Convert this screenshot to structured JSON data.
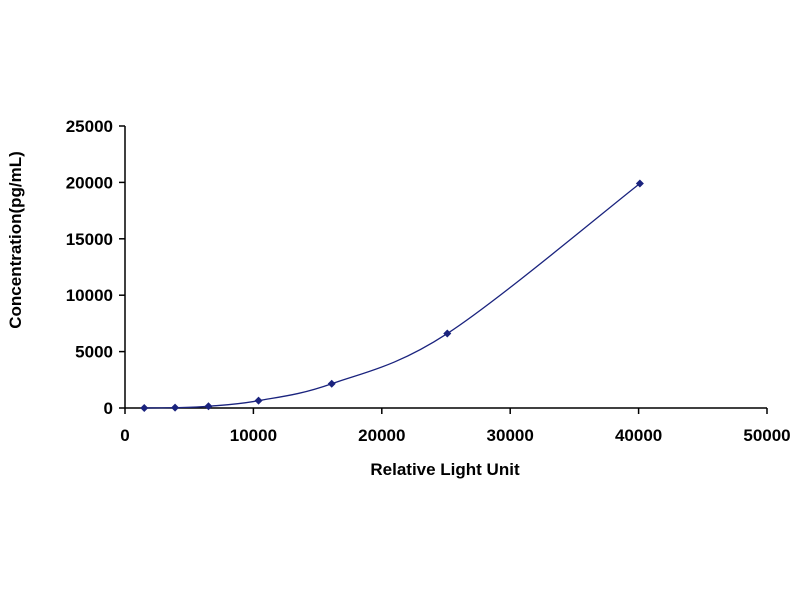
{
  "chart_data": {
    "type": "scatter",
    "title": "",
    "xlabel": "Relative Light Unit",
    "ylabel": "Concentration(pg/mL)",
    "xlim": [
      0,
      50000
    ],
    "ylim": [
      0,
      25000
    ],
    "x_ticks": [
      0,
      10000,
      20000,
      30000,
      40000,
      50000
    ],
    "y_ticks": [
      0,
      5000,
      10000,
      15000,
      20000,
      25000
    ],
    "x_tick_labels": [
      "0",
      "10000",
      "20000",
      "30000",
      "40000",
      "50000"
    ],
    "y_tick_labels": [
      "0",
      "5000",
      "10000",
      "15000",
      "20000",
      "25000"
    ],
    "grid": false,
    "legend": "none",
    "series": [
      {
        "points": [
          {
            "x": 1500,
            "y": 0
          },
          {
            "x": 3900,
            "y": 30
          },
          {
            "x": 6500,
            "y": 150
          },
          {
            "x": 10400,
            "y": 650
          },
          {
            "x": 16100,
            "y": 2150
          },
          {
            "x": 25100,
            "y": 6600
          },
          {
            "x": 40100,
            "y": 19900
          }
        ],
        "fit_curve": true
      }
    ],
    "colors": {
      "series": "#1a237e",
      "axis": "#000000"
    }
  }
}
